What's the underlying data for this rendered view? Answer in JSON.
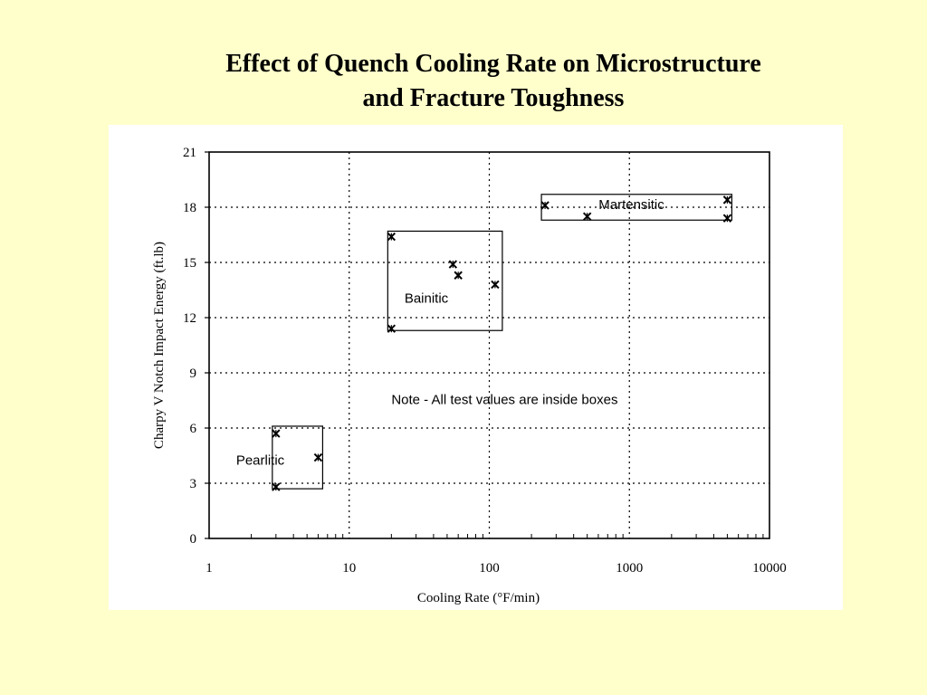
{
  "slide": {
    "title_line1": "Effect of Quench Cooling Rate on Microstructure",
    "title_line2": "and Fracture Toughness"
  },
  "chart_data": {
    "type": "scatter",
    "title": "Effect of Quench Cooling Rate on Microstructure and Fracture Toughness",
    "xlabel": "Cooling Rate (°F/min)",
    "ylabel": "Charpy V Notch Impact Energy (ft.lb)",
    "x_scale": "log",
    "xlim": [
      1,
      10000
    ],
    "ylim": [
      0,
      21
    ],
    "x_ticks": [
      1,
      10,
      100,
      1000,
      10000
    ],
    "x_tick_labels": [
      "1",
      "10",
      "100",
      "1000",
      "10000"
    ],
    "y_ticks": [
      0,
      3,
      6,
      9,
      12,
      15,
      18,
      21
    ],
    "y_tick_labels": [
      "0",
      "3",
      "6",
      "9",
      "12",
      "15",
      "18",
      "21"
    ],
    "grid": "dotted",
    "marker": "x",
    "series": [
      {
        "name": "Pearlitic",
        "points": [
          [
            3,
            5.7
          ],
          [
            6,
            4.4
          ],
          [
            3,
            2.8
          ]
        ]
      },
      {
        "name": "Bainitic",
        "points": [
          [
            20,
            16.4
          ],
          [
            55,
            14.9
          ],
          [
            60,
            14.3
          ],
          [
            110,
            13.8
          ],
          [
            20,
            11.4
          ]
        ]
      },
      {
        "name": "Martensitic",
        "points": [
          [
            250,
            18.1
          ],
          [
            500,
            17.5
          ],
          [
            5000,
            18.4
          ],
          [
            5000,
            17.4
          ]
        ]
      }
    ],
    "boxes": [
      {
        "label": "Pearlitic",
        "x": [
          3,
          6
        ],
        "y": [
          2.7,
          6.1
        ]
      },
      {
        "label": "Bainitic",
        "x": [
          20,
          115
        ],
        "y": [
          11.3,
          16.7
        ]
      },
      {
        "label": "Martensitic",
        "x": [
          250,
          5000
        ],
        "y": [
          17.3,
          18.7
        ]
      }
    ],
    "annotations": [
      "Note - All test values are inside boxes"
    ]
  },
  "colors": {
    "slide_background": "#ffffcc",
    "chart_background": "#ffffff",
    "ink": "#000000"
  }
}
